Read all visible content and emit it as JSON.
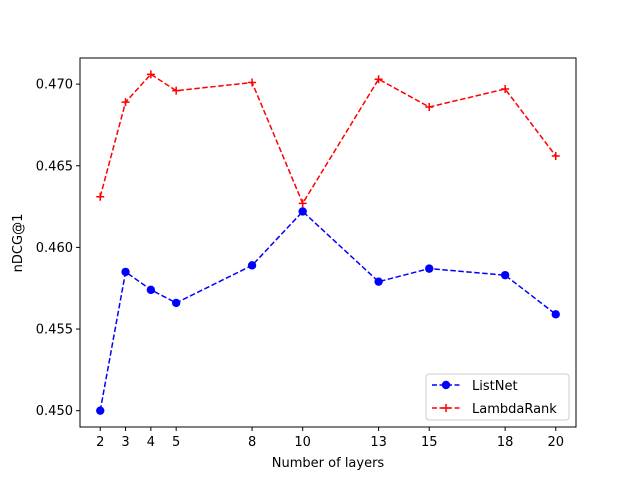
{
  "chart_data": {
    "type": "line",
    "xlabel": "Number of layers",
    "ylabel": "nDCG@1",
    "x": [
      2,
      3,
      4,
      5,
      8,
      10,
      13,
      15,
      18,
      20
    ],
    "xticks": [
      "2",
      "3",
      "4",
      "5",
      "8",
      "10",
      "13",
      "15",
      "18",
      "20"
    ],
    "xlim": [
      1.2,
      20.8
    ],
    "ylim": [
      0.449,
      0.4716
    ],
    "yticks": [
      "0.450",
      "0.455",
      "0.460",
      "0.465",
      "0.470"
    ],
    "ytick_values": [
      0.45,
      0.455,
      0.46,
      0.465,
      0.47
    ],
    "grid": false,
    "legend_position": "lower-right",
    "series": [
      {
        "name": "ListNet",
        "color": "#0000ff",
        "marker": "circle",
        "linestyle": "dashed",
        "values": [
          0.45,
          0.4585,
          0.4574,
          0.4566,
          0.4589,
          0.4622,
          0.4579,
          0.4587,
          0.4583,
          0.4559
        ]
      },
      {
        "name": "LambdaRank",
        "color": "#ff0000",
        "marker": "plus",
        "linestyle": "dashed",
        "values": [
          0.4631,
          0.4689,
          0.4706,
          0.4696,
          0.4701,
          0.4627,
          0.4703,
          0.4686,
          0.4697,
          0.4656
        ]
      }
    ]
  }
}
